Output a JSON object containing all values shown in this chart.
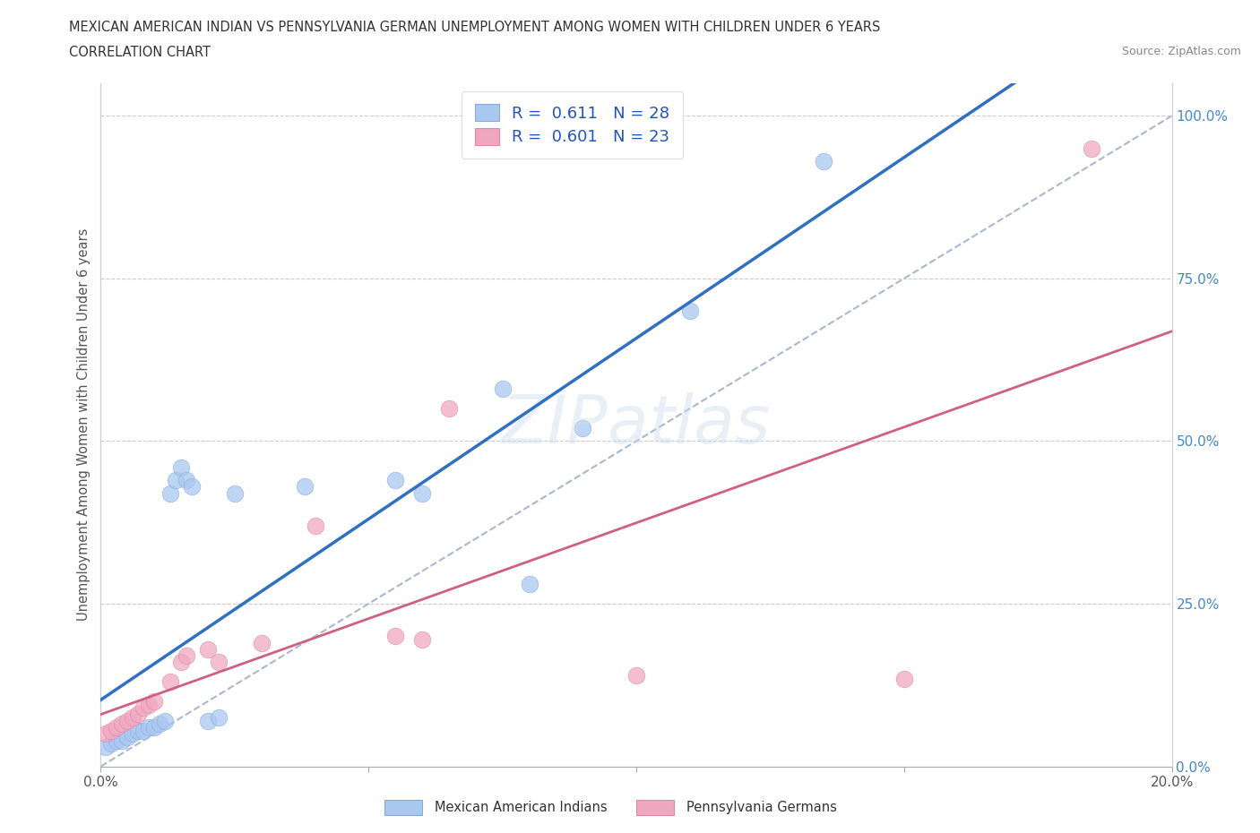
{
  "title_line1": "MEXICAN AMERICAN INDIAN VS PENNSYLVANIA GERMAN UNEMPLOYMENT AMONG WOMEN WITH CHILDREN UNDER 6 YEARS",
  "title_line2": "CORRELATION CHART",
  "source": "Source: ZipAtlas.com",
  "ylabel": "Unemployment Among Women with Children Under 6 years",
  "xlim": [
    0.0,
    0.2
  ],
  "ylim": [
    0.0,
    1.05
  ],
  "R_blue": 0.611,
  "N_blue": 28,
  "R_pink": 0.601,
  "N_pink": 23,
  "blue_color": "#a8c8f0",
  "pink_color": "#f0a8c0",
  "blue_line_color": "#3070c0",
  "pink_line_color": "#d06080",
  "diag_color": "#a8b8d0",
  "legend_label_blue": "Mexican American Indians",
  "legend_label_pink": "Pennsylvania Germans",
  "blue_x": [
    0.001,
    0.002,
    0.003,
    0.004,
    0.005,
    0.006,
    0.007,
    0.008,
    0.009,
    0.01,
    0.011,
    0.012,
    0.013,
    0.014,
    0.015,
    0.016,
    0.017,
    0.02,
    0.022,
    0.025,
    0.038,
    0.055,
    0.06,
    0.075,
    0.08,
    0.09,
    0.11,
    0.135
  ],
  "blue_y": [
    0.03,
    0.035,
    0.04,
    0.04,
    0.045,
    0.05,
    0.055,
    0.055,
    0.06,
    0.06,
    0.065,
    0.07,
    0.42,
    0.44,
    0.46,
    0.44,
    0.43,
    0.07,
    0.075,
    0.42,
    0.43,
    0.44,
    0.42,
    0.58,
    0.28,
    0.52,
    0.7,
    0.93
  ],
  "pink_x": [
    0.001,
    0.002,
    0.003,
    0.004,
    0.005,
    0.006,
    0.007,
    0.008,
    0.009,
    0.01,
    0.013,
    0.015,
    0.016,
    0.02,
    0.022,
    0.03,
    0.04,
    0.055,
    0.06,
    0.065,
    0.1,
    0.15,
    0.185
  ],
  "pink_y": [
    0.05,
    0.055,
    0.06,
    0.065,
    0.07,
    0.075,
    0.08,
    0.09,
    0.095,
    0.1,
    0.13,
    0.16,
    0.17,
    0.18,
    0.16,
    0.19,
    0.37,
    0.2,
    0.195,
    0.55,
    0.14,
    0.135,
    0.95
  ]
}
